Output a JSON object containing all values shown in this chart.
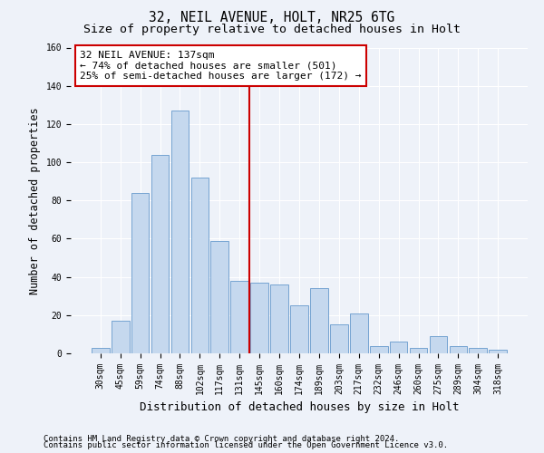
{
  "title": "32, NEIL AVENUE, HOLT, NR25 6TG",
  "subtitle": "Size of property relative to detached houses in Holt",
  "xlabel": "Distribution of detached houses by size in Holt",
  "ylabel": "Number of detached properties",
  "bar_labels": [
    "30sqm",
    "45sqm",
    "59sqm",
    "74sqm",
    "88sqm",
    "102sqm",
    "117sqm",
    "131sqm",
    "145sqm",
    "160sqm",
    "174sqm",
    "189sqm",
    "203sqm",
    "217sqm",
    "232sqm",
    "246sqm",
    "260sqm",
    "275sqm",
    "289sqm",
    "304sqm",
    "318sqm"
  ],
  "bar_values": [
    3,
    17,
    84,
    104,
    127,
    92,
    59,
    38,
    37,
    36,
    25,
    34,
    15,
    21,
    4,
    6,
    3,
    9,
    4,
    3,
    2
  ],
  "bar_color": "#c5d8ee",
  "bar_edge_color": "#6699cc",
  "background_color": "#eef2f9",
  "grid_color": "#ffffff",
  "vline_x_index": 7.5,
  "vline_color": "#cc0000",
  "annotation_line1": "32 NEIL AVENUE: 137sqm",
  "annotation_line2": "← 74% of detached houses are smaller (501)",
  "annotation_line3": "25% of semi-detached houses are larger (172) →",
  "annotation_box_edge_color": "#cc0000",
  "ylim": [
    0,
    160
  ],
  "yticks": [
    0,
    20,
    40,
    60,
    80,
    100,
    120,
    140,
    160
  ],
  "footer_line1": "Contains HM Land Registry data © Crown copyright and database right 2024.",
  "footer_line2": "Contains public sector information licensed under the Open Government Licence v3.0.",
  "title_fontsize": 10.5,
  "subtitle_fontsize": 9.5,
  "tick_fontsize": 7,
  "ylabel_fontsize": 8.5,
  "xlabel_fontsize": 9,
  "annotation_fontsize": 8,
  "footer_fontsize": 6.5
}
